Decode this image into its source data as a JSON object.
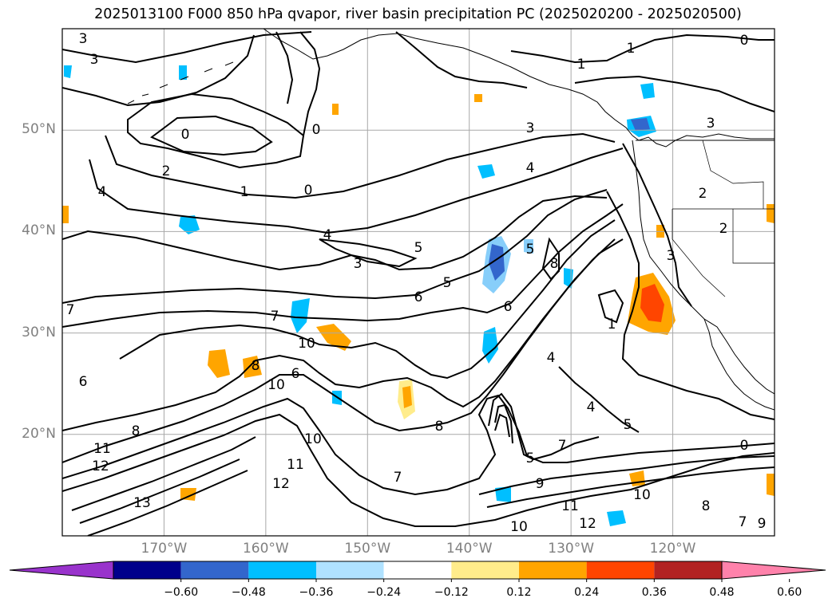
{
  "title": "2025013100 F000 850 hPa qvapor, river basin precipitation PC (2025020200 - 2025020500)",
  "map": {
    "lat_labels": [
      {
        "id": "50n",
        "text": "50°N",
        "value": 50
      },
      {
        "id": "40n",
        "text": "40°N",
        "value": 40
      },
      {
        "id": "30n",
        "text": "30°N",
        "value": 30
      },
      {
        "id": "20n",
        "text": "20°N",
        "value": 20
      }
    ],
    "lon_labels": [
      {
        "id": "170w",
        "text": "170°W",
        "value": -170
      },
      {
        "id": "160w",
        "text": "160°W",
        "value": -160
      },
      {
        "id": "150w",
        "text": "150°W",
        "value": -150
      },
      {
        "id": "140w",
        "text": "140°W",
        "value": -140
      },
      {
        "id": "130w",
        "text": "130°W",
        "value": -130
      },
      {
        "id": "120w",
        "text": "120°W",
        "value": -120
      }
    ],
    "extent": {
      "lon_min": -180,
      "lon_max": -110,
      "lat_min": 10,
      "lat_max": 60
    },
    "gridlines": true,
    "contour_labels": [
      "0",
      "1",
      "2",
      "3",
      "4",
      "5",
      "6",
      "7",
      "8",
      "9",
      "10",
      "11",
      "12",
      "13"
    ]
  },
  "colorbar": {
    "ticks": [
      "−0.60",
      "−0.48",
      "−0.36",
      "−0.24",
      "−0.12",
      "0.12",
      "0.24",
      "0.36",
      "0.48",
      "0.60"
    ],
    "colors": [
      "#9933cc",
      "#00008b",
      "#3366cc",
      "#00bfff",
      "#b0e2ff",
      "#ffffff",
      "#ffec8b",
      "#ffa500",
      "#ff4500",
      "#b22222",
      "#ff82ab"
    ],
    "extend": "both"
  }
}
